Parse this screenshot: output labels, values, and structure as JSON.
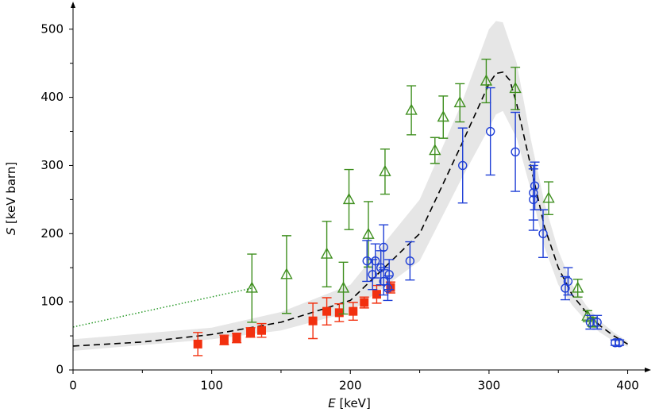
{
  "chart_data": {
    "type": "scatter",
    "xlabel": {
      "symbol": "E",
      "unit": "[keV]"
    },
    "ylabel": {
      "symbol": "S",
      "unit": "[keV barn]"
    },
    "xlim": [
      0,
      414
    ],
    "ylim": [
      0,
      537
    ],
    "xticks": [
      0,
      100,
      200,
      300,
      400
    ],
    "xminorticks": [
      50,
      150,
      250,
      350
    ],
    "yticks": [
      0,
      100,
      200,
      300,
      400,
      500
    ],
    "yminorticks": [
      50,
      150,
      250,
      350,
      450
    ],
    "series": [
      {
        "marker": "square",
        "color": "#f2300f",
        "x": [
          90,
          109,
          118,
          128,
          136,
          173,
          183,
          192,
          202,
          210,
          219,
          229
        ],
        "values": [
          38,
          44,
          47,
          55,
          58,
          72,
          86,
          84,
          86,
          99,
          111,
          121
        ],
        "errors": [
          17,
          7,
          7,
          7,
          10,
          26,
          20,
          13,
          13,
          8,
          13,
          8
        ]
      },
      {
        "marker": "triangle",
        "color": "#3f8f1f",
        "x": [
          129,
          154,
          183,
          195,
          199,
          213,
          225,
          244,
          261,
          267,
          279,
          298,
          319,
          343,
          364,
          371,
          375
        ],
        "values": [
          120,
          140,
          170,
          120,
          250,
          199,
          291,
          381,
          322,
          371,
          392,
          424,
          413,
          252,
          120,
          79,
          70
        ],
        "errors": [
          50,
          57,
          48,
          38,
          44,
          48,
          33,
          36,
          19,
          31,
          28,
          32,
          31,
          24,
          13,
          8,
          7
        ]
      },
      {
        "marker": "circle",
        "color": "#1f3fd6",
        "x": [
          212,
          216,
          218,
          222,
          224,
          224,
          227,
          228,
          243,
          281,
          301,
          319,
          333,
          332,
          332,
          339,
          355,
          357,
          373,
          378,
          391,
          394
        ],
        "values": [
          160,
          140,
          160,
          150,
          180,
          130,
          120,
          140,
          160,
          300,
          350,
          320,
          270,
          260,
          250,
          200,
          120,
          130,
          70,
          70,
          40,
          40
        ],
        "errors": [
          30,
          22,
          25,
          25,
          33,
          20,
          18,
          22,
          28,
          55,
          64,
          58,
          35,
          40,
          45,
          35,
          17,
          20,
          10,
          10,
          4,
          4
        ]
      }
    ],
    "band": {
      "color": "#e6e6e6",
      "x": [
        0,
        100,
        150,
        200,
        250,
        280,
        300,
        305,
        310,
        320,
        330,
        340,
        350,
        360,
        370,
        380,
        390,
        400
      ],
      "upper": [
        45,
        62,
        85,
        125,
        250,
        390,
        500,
        512,
        510,
        450,
        340,
        245,
        175,
        125,
        95,
        72,
        55,
        42
      ],
      "lower": [
        28,
        45,
        58,
        85,
        160,
        280,
        355,
        375,
        380,
        340,
        265,
        180,
        125,
        95,
        72,
        55,
        42,
        34
      ]
    },
    "fit": {
      "color": "#000000",
      "x": [
        0,
        50,
        100,
        150,
        200,
        250,
        280,
        300,
        305,
        310,
        315,
        320,
        330,
        340,
        350,
        360,
        370,
        380,
        390,
        400
      ],
      "values": [
        35,
        41,
        52,
        70,
        102,
        200,
        330,
        420,
        435,
        437,
        425,
        390,
        300,
        210,
        150,
        110,
        85,
        65,
        50,
        38
      ]
    },
    "extrapolation": {
      "color": "#2a9a2a",
      "x": [
        0,
        129
      ],
      "values": [
        63,
        120
      ]
    }
  }
}
